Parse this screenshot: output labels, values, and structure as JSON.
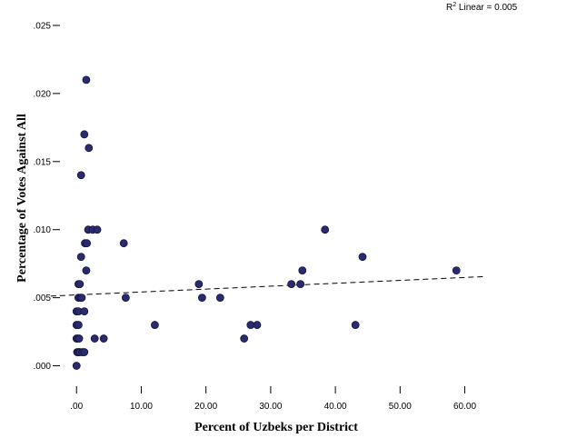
{
  "chart_data": {
    "type": "scatter",
    "title": "",
    "xlabel": "Percent of Uzbeks per District",
    "ylabel": "Percentage of Votes Against All",
    "xlim": [
      -2,
      64
    ],
    "ylim": [
      -0.0013,
      0.0262
    ],
    "x_ticks": [
      0,
      10,
      20,
      30,
      40,
      50,
      60
    ],
    "x_tick_labels": [
      ".00",
      "10.00",
      "20.00",
      "30.00",
      "40.00",
      "50.00",
      "60.00"
    ],
    "y_ticks": [
      0,
      0.005,
      0.01,
      0.015,
      0.02,
      0.025
    ],
    "y_tick_labels": [
      ".000",
      ".005",
      ".010",
      ".015",
      ".020",
      ".025"
    ],
    "grid": false,
    "fit_line": {
      "type": "linear",
      "label": "R² Linear = 0.005",
      "label_prefix": "R",
      "label_sup": "2",
      "label_suffix": " Linear = 0.005",
      "points": [
        [
          -4,
          0.00512
        ],
        [
          63,
          0.00655
        ]
      ]
    },
    "marker_color": "#2a2a6e",
    "line_color": "#000000",
    "series": [
      {
        "points": [
          [
            0.0,
            0.0
          ],
          [
            0.1,
            0.001
          ],
          [
            0.3,
            0.001
          ],
          [
            0.5,
            0.001
          ],
          [
            0.9,
            0.001
          ],
          [
            1.2,
            0.001
          ],
          [
            0.0,
            0.002
          ],
          [
            0.2,
            0.002
          ],
          [
            0.4,
            0.002
          ],
          [
            0.0,
            0.003
          ],
          [
            0.3,
            0.003
          ],
          [
            0.0,
            0.004
          ],
          [
            0.3,
            0.004
          ],
          [
            1.2,
            0.004
          ],
          [
            0.3,
            0.005
          ],
          [
            0.6,
            0.005
          ],
          [
            0.8,
            0.005
          ],
          [
            0.3,
            0.006
          ],
          [
            0.5,
            0.006
          ],
          [
            0.7,
            0.008
          ],
          [
            1.5,
            0.007
          ],
          [
            1.3,
            0.009
          ],
          [
            1.6,
            0.009
          ],
          [
            1.8,
            0.01
          ],
          [
            2.5,
            0.01
          ],
          [
            3.2,
            0.01
          ],
          [
            0.7,
            0.014
          ],
          [
            1.2,
            0.017
          ],
          [
            1.9,
            0.016
          ],
          [
            1.5,
            0.021
          ],
          [
            2.8,
            0.002
          ],
          [
            4.2,
            0.002
          ],
          [
            7.3,
            0.009
          ],
          [
            7.6,
            0.005
          ],
          [
            12.1,
            0.003
          ],
          [
            18.9,
            0.006
          ],
          [
            19.4,
            0.005
          ],
          [
            22.2,
            0.005
          ],
          [
            25.9,
            0.002
          ],
          [
            26.9,
            0.003
          ],
          [
            27.9,
            0.003
          ],
          [
            33.2,
            0.006
          ],
          [
            34.6,
            0.006
          ],
          [
            34.9,
            0.007
          ],
          [
            38.4,
            0.01
          ],
          [
            43.1,
            0.003
          ],
          [
            44.2,
            0.008
          ],
          [
            58.7,
            0.007
          ]
        ]
      }
    ]
  }
}
